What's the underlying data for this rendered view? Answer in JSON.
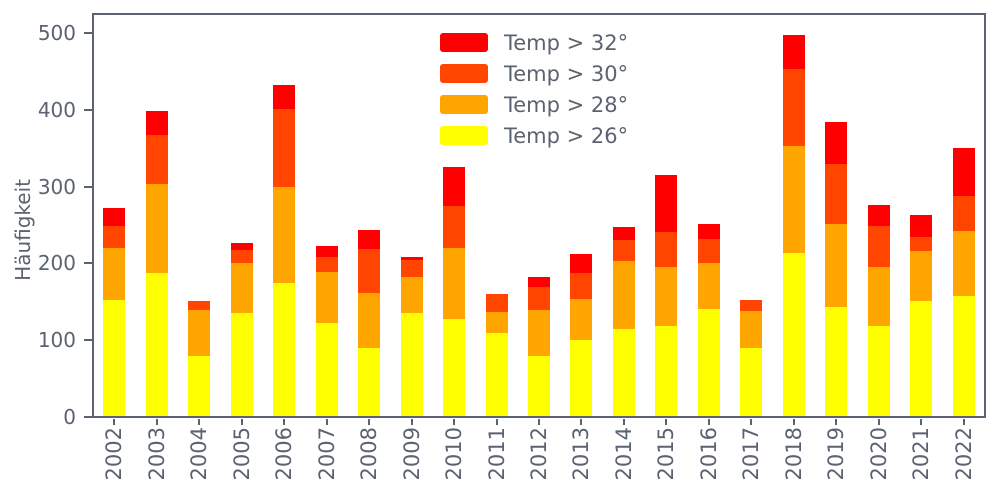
{
  "figure": {
    "ylabel": "Häufigkeit",
    "axis_color": "#5c6370",
    "background": "#ffffff"
  },
  "chart_data": {
    "type": "bar",
    "stacked": true,
    "title": "",
    "xlabel": "",
    "ylabel": "Häufigkeit",
    "ylim": [
      0,
      525
    ],
    "yticks": [
      0,
      100,
      200,
      300,
      400,
      500
    ],
    "grid": false,
    "legend_position": "upper-center-inside, no frame",
    "stack_bottom_to_top": [
      "Temp > 26°",
      "Temp > 28°",
      "Temp > 30°",
      "Temp > 32°"
    ],
    "categories": [
      "2002",
      "2003",
      "2004",
      "2005",
      "2006",
      "2007",
      "2008",
      "2009",
      "2010",
      "2011",
      "2012",
      "2013",
      "2014",
      "2015",
      "2016",
      "2017",
      "2018",
      "2019",
      "2020",
      "2021",
      "2022"
    ],
    "series": [
      {
        "name": "Temp > 32°",
        "color": "#ff0000",
        "values": [
          23,
          30,
          0,
          10,
          32,
          14,
          24,
          5,
          51,
          0,
          12,
          24,
          18,
          74,
          20,
          0,
          44,
          54,
          27,
          28,
          62
        ]
      },
      {
        "name": "Temp > 30°",
        "color": "#ff4500",
        "values": [
          29,
          64,
          12,
          16,
          102,
          20,
          57,
          22,
          55,
          23,
          30,
          34,
          27,
          45,
          31,
          14,
          101,
          79,
          53,
          19,
          46
        ]
      },
      {
        "name": "Temp > 28°",
        "color": "#ffa500",
        "values": [
          67,
          116,
          60,
          65,
          124,
          67,
          72,
          46,
          92,
          28,
          60,
          54,
          89,
          77,
          60,
          48,
          139,
          108,
          77,
          65,
          85
        ]
      },
      {
        "name": "Temp > 26°",
        "color": "#ffff00",
        "values": [
          153,
          188,
          79,
          136,
          175,
          122,
          90,
          136,
          128,
          109,
          80,
          100,
          114,
          119,
          141,
          90,
          214,
          143,
          119,
          151,
          157
        ]
      }
    ]
  }
}
